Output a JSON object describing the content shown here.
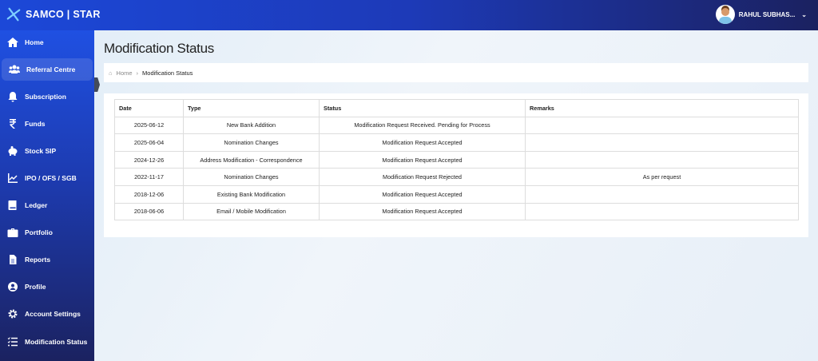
{
  "header": {
    "brand": "SAMCO | STAR",
    "user_name": "RAHUL SUBHAS..."
  },
  "sidebar": {
    "items": [
      {
        "label": "Home",
        "icon": "home-icon"
      },
      {
        "label": "Referral Centre",
        "icon": "users-icon",
        "active": true
      },
      {
        "label": "Subscription",
        "icon": "bell-icon"
      },
      {
        "label": "Funds",
        "icon": "rupee-icon"
      },
      {
        "label": "Stock SIP",
        "icon": "piggy-bank-icon"
      },
      {
        "label": "IPO / OFS / SGB",
        "icon": "chart-line-icon"
      },
      {
        "label": "Ledger",
        "icon": "book-icon"
      },
      {
        "label": "Portfolio",
        "icon": "briefcase-icon"
      },
      {
        "label": "Reports",
        "icon": "document-icon"
      },
      {
        "label": "Profile",
        "icon": "user-circle-icon"
      },
      {
        "label": "Account Settings",
        "icon": "gear-icon"
      },
      {
        "label": "Modification Status",
        "icon": "list-check-icon"
      }
    ]
  },
  "page": {
    "title": "Modification Status",
    "breadcrumb": {
      "home": "Home",
      "current": "Modification Status"
    }
  },
  "table": {
    "headers": [
      "Date",
      "Type",
      "Status",
      "Remarks"
    ],
    "rows": [
      [
        "2025-06-12",
        "New Bank Addition",
        "Modification Request Received. Pending for Process",
        ""
      ],
      [
        "2025-06-04",
        "Nomination Changes",
        "Modification Request Accepted",
        ""
      ],
      [
        "2024-12-26",
        "Address Modification - Correspondence",
        "Modification Request Accepted",
        ""
      ],
      [
        "2022-11-17",
        "Nomination Changes",
        "Modification Request Rejected",
        "As per request"
      ],
      [
        "2018-12-06",
        "Existing Bank Modification",
        "Modification Request Accepted",
        ""
      ],
      [
        "2018-06-06",
        "Email / Mobile Modification",
        "Modification Request Accepted",
        ""
      ]
    ]
  }
}
